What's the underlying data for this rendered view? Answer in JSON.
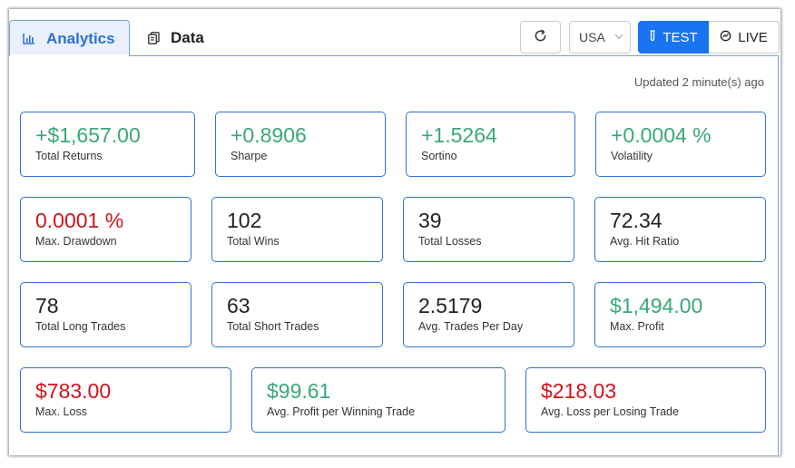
{
  "tabs": {
    "analytics_label": "Analytics",
    "data_label": "Data"
  },
  "controls": {
    "country": "USA",
    "test_label": "TEST",
    "live_label": "LIVE"
  },
  "status": {
    "updated": "Updated 2 minute(s) ago"
  },
  "colors": {
    "positive": "#3aa876",
    "negative": "#d4121b",
    "accent": "#1a73f0"
  },
  "metrics": {
    "total_returns": {
      "value": "+$1,657.00",
      "label": "Total Returns"
    },
    "sharpe": {
      "value": "+0.8906",
      "label": "Sharpe"
    },
    "sortino": {
      "value": "+1.5264",
      "label": "Sortino"
    },
    "volatility": {
      "value": "+0.0004 %",
      "label": "Volatility"
    },
    "max_drawdown": {
      "value": "0.0001 %",
      "label": "Max. Drawdown"
    },
    "total_wins": {
      "value": "102",
      "label": "Total Wins"
    },
    "total_losses": {
      "value": "39",
      "label": "Total Losses"
    },
    "avg_hit_ratio": {
      "value": "72.34",
      "label": "Avg. Hit Ratio"
    },
    "total_long_trades": {
      "value": "78",
      "label": "Total Long Trades"
    },
    "total_short_trades": {
      "value": "63",
      "label": "Total Short Trades"
    },
    "avg_trades_per_day": {
      "value": "2.5179",
      "label": "Avg. Trades Per Day"
    },
    "max_profit": {
      "value": "$1,494.00",
      "label": "Max. Profit"
    },
    "max_loss": {
      "value": "$783.00",
      "label": "Max. Loss"
    },
    "avg_profit_winning": {
      "value": "$99.61",
      "label": "Avg. Profit per Winning Trade"
    },
    "avg_loss_losing": {
      "value": "$218.03",
      "label": "Avg. Loss per Losing Trade"
    }
  }
}
